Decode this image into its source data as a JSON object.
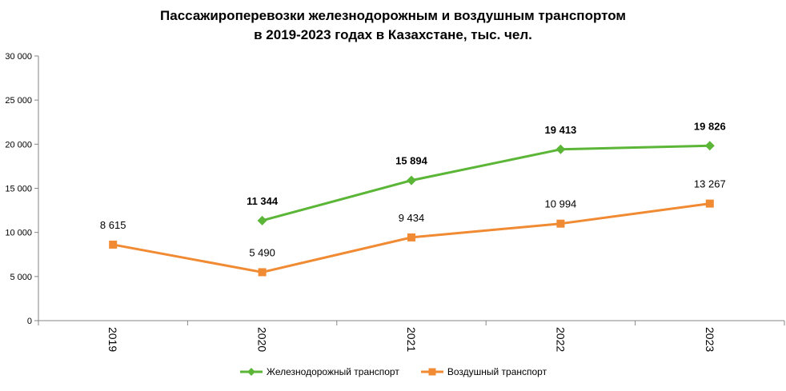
{
  "chart_data": {
    "type": "line",
    "title_line1": "Пассажироперевозки железнодорожным и воздушным транспортом",
    "title_line2": "в 2019-2023 годах в Казахстане, тыс. чел.",
    "categories": [
      "2019",
      "2020",
      "2021",
      "2022",
      "2023"
    ],
    "ylim": [
      0,
      30000
    ],
    "yticks": [
      0,
      5000,
      10000,
      15000,
      20000,
      25000,
      30000
    ],
    "ytick_labels": [
      "0",
      "5 000",
      "10 000",
      "15 000",
      "20 000",
      "25 000",
      "30 000"
    ],
    "grid": false,
    "legend_position": "bottom",
    "series": [
      {
        "name": "Железнодорожный транспорт",
        "color": "#5BB536",
        "marker": "diamond",
        "label_bold": true,
        "values": [
          null,
          11344,
          15894,
          19413,
          19826
        ],
        "labels": [
          "",
          "11 344",
          "15 894",
          "19 413",
          "19 826"
        ]
      },
      {
        "name": "Воздушный транспорт",
        "color": "#F08A33",
        "marker": "square",
        "label_bold": false,
        "values": [
          8615,
          5490,
          9434,
          10994,
          13267
        ],
        "labels": [
          "8 615",
          "5 490",
          "9 434",
          "10 994",
          "13 267"
        ]
      }
    ]
  }
}
